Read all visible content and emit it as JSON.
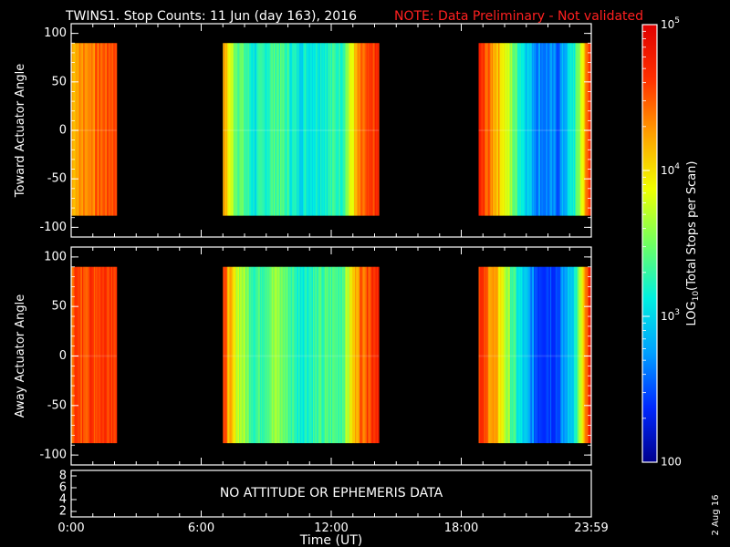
{
  "title": "TWINS1. Stop Counts: 11 Jun (day 163), 2016",
  "note": "NOTE: Data Preliminary - Not validated",
  "date_stamp": "2 Aug 16",
  "colors": {
    "background": "#000000",
    "foreground": "#ffffff",
    "note": "#ff2020",
    "colormap": [
      "#00008c",
      "#0028ff",
      "#00a0ff",
      "#00f0e0",
      "#70ff60",
      "#f0ff00",
      "#ffa000",
      "#ff3000",
      "#e00000"
    ]
  },
  "chart_data": [
    {
      "type": "heatmap",
      "name": "top-panel",
      "ylabel": "Toward Actuator Angle",
      "ylim": [
        -110,
        110
      ],
      "yticks": [
        100,
        50,
        0,
        -50,
        -100
      ],
      "ytick_labels": [
        "100",
        "50",
        "0",
        "-50",
        "-100"
      ],
      "xlim": [
        0,
        24
      ],
      "x_unit": "hours UT",
      "data_extent_y": [
        -88,
        90
      ],
      "data_intervals": [
        {
          "start": 0.0,
          "end": 2.1
        },
        {
          "start": 7.0,
          "end": 14.2
        },
        {
          "start": 18.8,
          "end": 24.0
        }
      ],
      "log10_level_profile": [
        {
          "t": 0.0,
          "v": 4.2
        },
        {
          "t": 1.0,
          "v": 4.4
        },
        {
          "t": 2.1,
          "v": 4.6
        },
        {
          "t": 7.0,
          "v": 4.3
        },
        {
          "t": 7.5,
          "v": 3.6
        },
        {
          "t": 8.5,
          "v": 3.1
        },
        {
          "t": 9.5,
          "v": 3.4
        },
        {
          "t": 10.5,
          "v": 3.1
        },
        {
          "t": 11.5,
          "v": 3.2
        },
        {
          "t": 12.5,
          "v": 3.3
        },
        {
          "t": 13.3,
          "v": 4.3
        },
        {
          "t": 14.2,
          "v": 4.7
        },
        {
          "t": 18.8,
          "v": 4.7
        },
        {
          "t": 19.8,
          "v": 4.1
        },
        {
          "t": 20.5,
          "v": 3.4
        },
        {
          "t": 21.5,
          "v": 2.7
        },
        {
          "t": 22.5,
          "v": 2.6
        },
        {
          "t": 23.3,
          "v": 3.3
        },
        {
          "t": 24.0,
          "v": 4.8
        }
      ]
    },
    {
      "type": "heatmap",
      "name": "middle-panel",
      "ylabel": "Away Actuator Angle",
      "ylim": [
        -110,
        110
      ],
      "yticks": [
        100,
        50,
        0,
        -50,
        -100
      ],
      "ytick_labels": [
        "100",
        "50",
        "0",
        "-50",
        "-100"
      ],
      "xlim": [
        0,
        24
      ],
      "x_unit": "hours UT",
      "data_extent_y": [
        -88,
        90
      ],
      "data_intervals": [
        {
          "start": 0.0,
          "end": 2.1
        },
        {
          "start": 7.0,
          "end": 14.2
        },
        {
          "start": 18.8,
          "end": 24.0
        }
      ],
      "log10_level_profile": [
        {
          "t": 0.0,
          "v": 4.5
        },
        {
          "t": 1.0,
          "v": 4.6
        },
        {
          "t": 2.1,
          "v": 4.7
        },
        {
          "t": 7.0,
          "v": 4.6
        },
        {
          "t": 7.5,
          "v": 3.9
        },
        {
          "t": 8.5,
          "v": 3.3
        },
        {
          "t": 9.5,
          "v": 3.6
        },
        {
          "t": 10.5,
          "v": 3.2
        },
        {
          "t": 11.5,
          "v": 3.3
        },
        {
          "t": 12.5,
          "v": 3.4
        },
        {
          "t": 13.3,
          "v": 4.4
        },
        {
          "t": 14.2,
          "v": 4.8
        },
        {
          "t": 18.8,
          "v": 4.7
        },
        {
          "t": 19.8,
          "v": 4.0
        },
        {
          "t": 20.5,
          "v": 3.2
        },
        {
          "t": 21.5,
          "v": 2.5
        },
        {
          "t": 22.5,
          "v": 2.5
        },
        {
          "t": 23.3,
          "v": 3.2
        },
        {
          "t": 24.0,
          "v": 4.9
        }
      ]
    }
  ],
  "colorbar": {
    "label": "LOG10(Total Stops per Scan)",
    "scale": "log",
    "range": [
      100,
      100000
    ],
    "tick_labels": [
      {
        "value": 100000,
        "text": "10^5"
      },
      {
        "value": 10000,
        "text": "10^4"
      },
      {
        "value": 1000,
        "text": "10^3"
      },
      {
        "value": 100,
        "text": "100"
      }
    ]
  },
  "ephemeris_panel": {
    "message": "NO ATTITUDE OR EPHEMERIS DATA",
    "yticks": [
      "8",
      "6",
      "4",
      "2"
    ]
  },
  "x_axis": {
    "label": "Time (UT)",
    "tick_labels": [
      "0:00",
      "6:00",
      "12:00",
      "18:00",
      "23:59"
    ],
    "tick_hours": [
      0,
      6,
      12,
      18,
      24
    ]
  }
}
